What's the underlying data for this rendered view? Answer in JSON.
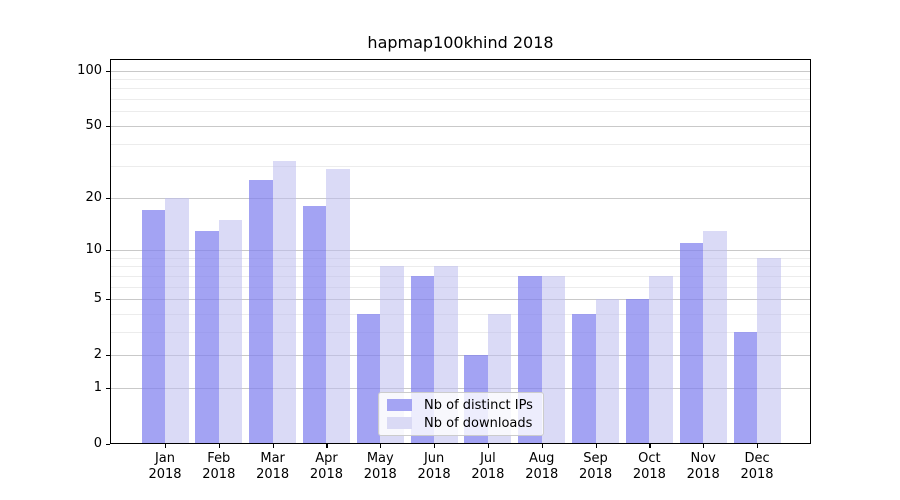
{
  "title": "hapmap100khind 2018",
  "legend": {
    "items": [
      {
        "label": "Nb of distinct IPs",
        "series": "ips"
      },
      {
        "label": "Nb of downloads",
        "series": "downloads"
      }
    ]
  },
  "colors": {
    "ips_bar": "rgba(128,128,238,0.72)",
    "downloads_bar": "rgba(188,188,238,0.55)",
    "ips_swatch": "#a4a4f3",
    "downloads_swatch": "#dadaf5",
    "grid_major": "#c9c9c9",
    "grid_minor": "#ececec",
    "axis": "#000000"
  },
  "chart_data": {
    "type": "bar",
    "title": "hapmap100khind 2018",
    "categories": [
      "Jan",
      "Feb",
      "Mar",
      "Apr",
      "May",
      "Jun",
      "Jul",
      "Aug",
      "Sep",
      "Oct",
      "Nov",
      "Dec"
    ],
    "year_label": "2018",
    "series": [
      {
        "name": "Nb of distinct IPs",
        "key": "ips",
        "values": [
          17,
          13,
          25,
          18,
          4,
          7,
          2,
          7,
          4,
          5,
          11,
          3
        ]
      },
      {
        "name": "Nb of downloads",
        "key": "downloads",
        "values": [
          20,
          15,
          32,
          29,
          8,
          8,
          4,
          7,
          5,
          7,
          13,
          9
        ]
      }
    ],
    "y_scale": "log1p",
    "y_major_ticks": [
      0,
      1,
      2,
      5,
      10,
      20,
      50,
      100
    ],
    "y_minor_ticks": [
      3,
      4,
      6,
      7,
      8,
      9,
      30,
      40,
      60,
      70,
      80,
      90
    ],
    "ylim": [
      0,
      100
    ],
    "grid": "horizontal-only",
    "legend_position": "lower-center"
  }
}
